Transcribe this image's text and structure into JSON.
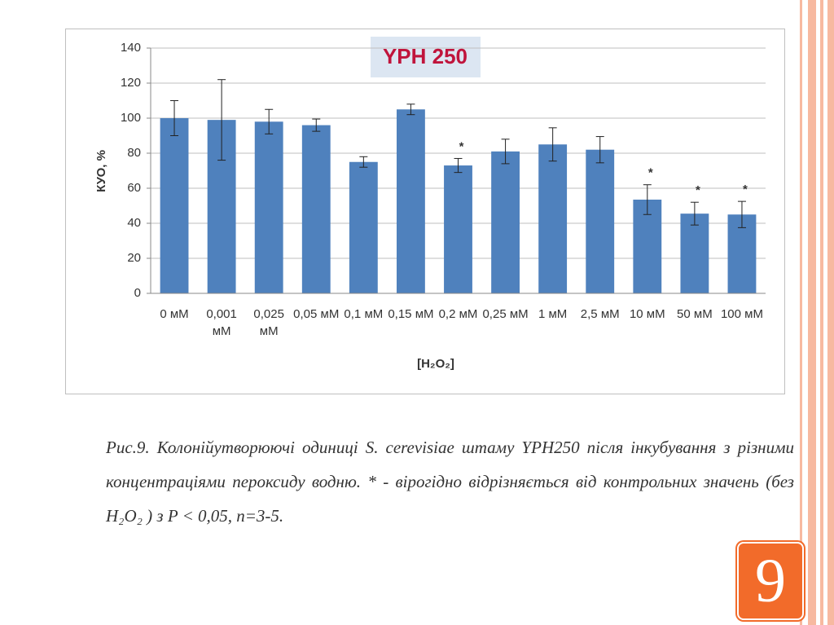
{
  "chart_data": {
    "type": "bar",
    "title": "YPH 250",
    "y_label": "КУО, %",
    "x_label": "[H₂O₂]",
    "categories": [
      "0 мМ",
      "0,001 мМ",
      "0,025 мМ",
      "0,05 мМ",
      "0,1 мМ",
      "0,15 мМ",
      "0,2 мМ",
      "0,25 мМ",
      "1 мМ",
      "2,5 мМ",
      "10 мМ",
      "50 мМ",
      "100 мМ"
    ],
    "series": [
      {
        "color": "#4f81bd",
        "values": [
          100,
          99,
          98,
          96,
          75,
          105,
          73,
          81,
          85,
          82,
          53.5,
          45.5,
          45
        ],
        "errors": [
          10,
          23,
          7,
          3.5,
          3,
          3,
          4,
          7,
          9.5,
          7.5,
          8.5,
          6.5,
          7.5
        ]
      }
    ],
    "annotations": [
      {
        "text": "*",
        "category": "0,2 мМ"
      },
      {
        "text": "*",
        "category": "10 мМ"
      },
      {
        "text": "*",
        "category": "50 мМ"
      },
      {
        "text": "*",
        "category": "100 мМ"
      }
    ],
    "ylim": [
      0,
      140
    ],
    "yticks": [
      0,
      20,
      40,
      60,
      80,
      100,
      120,
      140
    ],
    "grid": true
  },
  "caption": "Рис.9. Колонійутворюючі одиниці S. cerevisiae штаму YPH250 після інкубування з різними концентраціями пероксиду водню. * - вірогідно відрізняється від контрольних значень (без H₂O₂ ) з P < 0,05, n=3-5.",
  "slide_number": "9"
}
